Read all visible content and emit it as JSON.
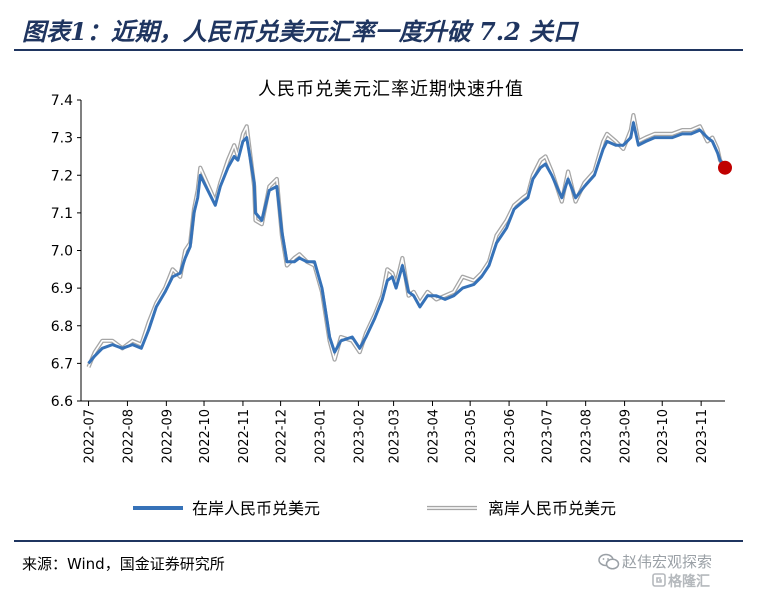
{
  "header": {
    "title": "图表1：近期，人民币兑美元汇率一度升破 7.2 关口"
  },
  "footer": {
    "source": "来源：Wind，国金证券研究所"
  },
  "watermark": {
    "account": "赵伟宏观探索",
    "brand": "格隆汇",
    "icon": "wechat-icon"
  },
  "colors": {
    "onshore": "#3672b8",
    "offshore": "#a6a6a6",
    "marker": "#c00000",
    "frame": "#1f3560"
  },
  "chart_data": {
    "type": "line",
    "title": "人民币兑美元汇率近期快速升值",
    "ylim": [
      6.6,
      7.4
    ],
    "yticks": [
      "6.6",
      "6.7",
      "6.8",
      "6.9",
      "7.0",
      "7.1",
      "7.2",
      "7.3",
      "7.4"
    ],
    "xlabels": [
      "2022-07",
      "2022-08",
      "2022-09",
      "2022-10",
      "2022-11",
      "2022-12",
      "2023-01",
      "2023-02",
      "2023-03",
      "2023-04",
      "2023-05",
      "2023-06",
      "2023-07",
      "2023-08",
      "2023-09",
      "2023-10",
      "2023-11"
    ],
    "legend_position": "bottom",
    "grid": false,
    "series": [
      {
        "name": "在岸人民币兑美元",
        "color": "#3672b8",
        "points": [
          [
            "2022-07-01",
            6.7
          ],
          [
            "2022-07-06",
            6.72
          ],
          [
            "2022-07-12",
            6.74
          ],
          [
            "2022-07-20",
            6.75
          ],
          [
            "2022-07-28",
            6.74
          ],
          [
            "2022-08-05",
            6.75
          ],
          [
            "2022-08-12",
            6.74
          ],
          [
            "2022-08-18",
            6.79
          ],
          [
            "2022-08-24",
            6.85
          ],
          [
            "2022-08-31",
            6.89
          ],
          [
            "2022-09-06",
            6.93
          ],
          [
            "2022-09-12",
            6.94
          ],
          [
            "2022-09-16",
            6.98
          ],
          [
            "2022-09-20",
            7.01
          ],
          [
            "2022-09-23",
            7.1
          ],
          [
            "2022-09-26",
            7.14
          ],
          [
            "2022-09-28",
            7.2
          ],
          [
            "2022-10-10",
            7.12
          ],
          [
            "2022-10-14",
            7.17
          ],
          [
            "2022-10-20",
            7.22
          ],
          [
            "2022-10-25",
            7.25
          ],
          [
            "2022-10-28",
            7.24
          ],
          [
            "2022-11-01",
            7.29
          ],
          [
            "2022-11-04",
            7.3
          ],
          [
            "2022-11-07",
            7.24
          ],
          [
            "2022-11-10",
            7.18
          ],
          [
            "2022-11-11",
            7.1
          ],
          [
            "2022-11-16",
            7.08
          ],
          [
            "2022-11-22",
            7.16
          ],
          [
            "2022-11-28",
            7.17
          ],
          [
            "2022-12-02",
            7.05
          ],
          [
            "2022-12-06",
            6.97
          ],
          [
            "2022-12-12",
            6.97
          ],
          [
            "2022-12-16",
            6.98
          ],
          [
            "2022-12-22",
            6.97
          ],
          [
            "2022-12-28",
            6.97
          ],
          [
            "2023-01-03",
            6.9
          ],
          [
            "2023-01-09",
            6.77
          ],
          [
            "2023-01-13",
            6.73
          ],
          [
            "2023-01-18",
            6.76
          ],
          [
            "2023-01-27",
            6.77
          ],
          [
            "2023-02-02",
            6.74
          ],
          [
            "2023-02-07",
            6.77
          ],
          [
            "2023-02-14",
            6.82
          ],
          [
            "2023-02-20",
            6.87
          ],
          [
            "2023-02-24",
            6.92
          ],
          [
            "2023-02-28",
            6.93
          ],
          [
            "2023-03-03",
            6.9
          ],
          [
            "2023-03-08",
            6.96
          ],
          [
            "2023-03-13",
            6.89
          ],
          [
            "2023-03-17",
            6.88
          ],
          [
            "2023-03-22",
            6.85
          ],
          [
            "2023-03-28",
            6.88
          ],
          [
            "2023-04-04",
            6.88
          ],
          [
            "2023-04-11",
            6.87
          ],
          [
            "2023-04-18",
            6.88
          ],
          [
            "2023-04-25",
            6.9
          ],
          [
            "2023-05-04",
            6.91
          ],
          [
            "2023-05-10",
            6.93
          ],
          [
            "2023-05-16",
            6.96
          ],
          [
            "2023-05-22",
            7.02
          ],
          [
            "2023-05-30",
            7.06
          ],
          [
            "2023-06-05",
            7.11
          ],
          [
            "2023-06-12",
            7.13
          ],
          [
            "2023-06-16",
            7.14
          ],
          [
            "2023-06-20",
            7.19
          ],
          [
            "2023-06-26",
            7.22
          ],
          [
            "2023-06-30",
            7.23
          ],
          [
            "2023-07-05",
            7.2
          ],
          [
            "2023-07-13",
            7.14
          ],
          [
            "2023-07-18",
            7.19
          ],
          [
            "2023-07-24",
            7.14
          ],
          [
            "2023-07-31",
            7.17
          ],
          [
            "2023-08-08",
            7.2
          ],
          [
            "2023-08-15",
            7.27
          ],
          [
            "2023-08-18",
            7.29
          ],
          [
            "2023-08-25",
            7.28
          ],
          [
            "2023-08-31",
            7.28
          ],
          [
            "2023-09-06",
            7.3
          ],
          [
            "2023-09-08",
            7.34
          ],
          [
            "2023-09-12",
            7.28
          ],
          [
            "2023-09-18",
            7.29
          ],
          [
            "2023-09-25",
            7.3
          ],
          [
            "2023-10-09",
            7.3
          ],
          [
            "2023-10-17",
            7.31
          ],
          [
            "2023-10-24",
            7.31
          ],
          [
            "2023-10-31",
            7.32
          ],
          [
            "2023-11-06",
            7.3
          ],
          [
            "2023-11-10",
            7.29
          ],
          [
            "2023-11-14",
            7.26
          ],
          [
            "2023-11-16",
            7.24
          ],
          [
            "2023-11-20",
            7.22
          ]
        ]
      },
      {
        "name": "离岸人民币兑美元",
        "color": "#a6a6a6",
        "points": [
          [
            "2022-07-01",
            6.69
          ],
          [
            "2022-07-06",
            6.73
          ],
          [
            "2022-07-12",
            6.76
          ],
          [
            "2022-07-20",
            6.76
          ],
          [
            "2022-07-28",
            6.74
          ],
          [
            "2022-08-05",
            6.76
          ],
          [
            "2022-08-12",
            6.75
          ],
          [
            "2022-08-18",
            6.81
          ],
          [
            "2022-08-24",
            6.86
          ],
          [
            "2022-08-31",
            6.9
          ],
          [
            "2022-09-06",
            6.95
          ],
          [
            "2022-09-12",
            6.93
          ],
          [
            "2022-09-16",
            7.0
          ],
          [
            "2022-09-20",
            7.02
          ],
          [
            "2022-09-23",
            7.11
          ],
          [
            "2022-09-26",
            7.16
          ],
          [
            "2022-09-28",
            7.22
          ],
          [
            "2022-10-10",
            7.13
          ],
          [
            "2022-10-14",
            7.18
          ],
          [
            "2022-10-20",
            7.24
          ],
          [
            "2022-10-25",
            7.28
          ],
          [
            "2022-10-28",
            7.25
          ],
          [
            "2022-11-01",
            7.31
          ],
          [
            "2022-11-04",
            7.33
          ],
          [
            "2022-11-07",
            7.25
          ],
          [
            "2022-11-10",
            7.17
          ],
          [
            "2022-11-11",
            7.08
          ],
          [
            "2022-11-16",
            7.07
          ],
          [
            "2022-11-22",
            7.17
          ],
          [
            "2022-11-28",
            7.19
          ],
          [
            "2022-12-02",
            7.04
          ],
          [
            "2022-12-06",
            6.96
          ],
          [
            "2022-12-12",
            6.98
          ],
          [
            "2022-12-16",
            6.99
          ],
          [
            "2022-12-22",
            6.97
          ],
          [
            "2022-12-28",
            6.96
          ],
          [
            "2023-01-03",
            6.89
          ],
          [
            "2023-01-09",
            6.76
          ],
          [
            "2023-01-13",
            6.71
          ],
          [
            "2023-01-18",
            6.77
          ],
          [
            "2023-01-27",
            6.76
          ],
          [
            "2023-02-02",
            6.73
          ],
          [
            "2023-02-07",
            6.78
          ],
          [
            "2023-02-14",
            6.83
          ],
          [
            "2023-02-20",
            6.88
          ],
          [
            "2023-02-24",
            6.95
          ],
          [
            "2023-02-28",
            6.94
          ],
          [
            "2023-03-03",
            6.91
          ],
          [
            "2023-03-08",
            6.98
          ],
          [
            "2023-03-13",
            6.88
          ],
          [
            "2023-03-17",
            6.89
          ],
          [
            "2023-03-22",
            6.86
          ],
          [
            "2023-03-28",
            6.89
          ],
          [
            "2023-04-04",
            6.87
          ],
          [
            "2023-04-11",
            6.88
          ],
          [
            "2023-04-18",
            6.89
          ],
          [
            "2023-04-25",
            6.93
          ],
          [
            "2023-05-04",
            6.92
          ],
          [
            "2023-05-10",
            6.94
          ],
          [
            "2023-05-16",
            6.97
          ],
          [
            "2023-05-22",
            7.04
          ],
          [
            "2023-05-30",
            7.08
          ],
          [
            "2023-06-05",
            7.12
          ],
          [
            "2023-06-12",
            7.14
          ],
          [
            "2023-06-16",
            7.15
          ],
          [
            "2023-06-20",
            7.2
          ],
          [
            "2023-06-26",
            7.24
          ],
          [
            "2023-06-30",
            7.25
          ],
          [
            "2023-07-05",
            7.21
          ],
          [
            "2023-07-13",
            7.13
          ],
          [
            "2023-07-18",
            7.21
          ],
          [
            "2023-07-24",
            7.13
          ],
          [
            "2023-07-31",
            7.18
          ],
          [
            "2023-08-08",
            7.21
          ],
          [
            "2023-08-15",
            7.29
          ],
          [
            "2023-08-18",
            7.31
          ],
          [
            "2023-08-25",
            7.29
          ],
          [
            "2023-08-31",
            7.27
          ],
          [
            "2023-09-06",
            7.32
          ],
          [
            "2023-09-08",
            7.36
          ],
          [
            "2023-09-12",
            7.29
          ],
          [
            "2023-09-18",
            7.3
          ],
          [
            "2023-09-25",
            7.31
          ],
          [
            "2023-10-09",
            7.31
          ],
          [
            "2023-10-17",
            7.32
          ],
          [
            "2023-10-24",
            7.32
          ],
          [
            "2023-10-31",
            7.33
          ],
          [
            "2023-11-06",
            7.29
          ],
          [
            "2023-11-10",
            7.3
          ],
          [
            "2023-11-14",
            7.27
          ],
          [
            "2023-11-16",
            7.24
          ],
          [
            "2023-11-20",
            7.22
          ]
        ]
      }
    ],
    "highlight": {
      "date": "2023-11-20",
      "value": 7.22,
      "color": "#c00000"
    }
  }
}
